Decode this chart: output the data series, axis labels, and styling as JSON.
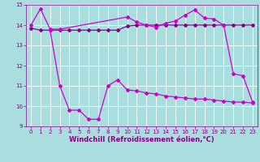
{
  "title": "",
  "xlabel": "Windchill (Refroidissement éolien,°C)",
  "ylabel": "",
  "bg_color": "#aadddd",
  "line_color1": "#cc00cc",
  "line_color2": "#880088",
  "xlim": [
    -0.5,
    23.5
  ],
  "ylim": [
    9,
    15
  ],
  "yticks": [
    9,
    10,
    11,
    12,
    13,
    14,
    15
  ],
  "xticks": [
    0,
    1,
    2,
    3,
    4,
    5,
    6,
    7,
    8,
    9,
    10,
    11,
    12,
    13,
    14,
    15,
    16,
    17,
    18,
    19,
    20,
    21,
    22,
    23
  ],
  "series1_x": [
    0,
    1,
    2,
    3,
    10,
    11,
    12,
    13,
    14,
    15,
    16,
    17,
    18,
    19,
    20,
    21,
    22,
    23
  ],
  "series1_y": [
    14.0,
    14.8,
    13.8,
    13.8,
    14.4,
    14.15,
    14.0,
    13.9,
    14.1,
    14.2,
    14.5,
    14.75,
    14.35,
    14.3,
    14.0,
    11.6,
    11.5,
    10.2
  ],
  "series2_x": [
    0,
    1,
    2,
    3,
    4,
    5,
    6,
    7,
    8,
    9,
    10,
    11,
    12,
    13,
    14,
    15,
    16,
    17,
    18,
    19,
    20,
    21,
    22,
    23
  ],
  "series2_y": [
    13.85,
    13.75,
    13.75,
    13.75,
    13.75,
    13.75,
    13.75,
    13.75,
    13.75,
    13.75,
    13.95,
    14.0,
    14.0,
    14.0,
    14.0,
    14.0,
    14.0,
    14.0,
    14.0,
    14.0,
    14.0,
    14.0,
    14.0,
    14.0
  ],
  "series3_x": [
    2,
    3,
    4,
    5,
    6,
    7,
    8,
    9,
    10,
    11,
    12,
    13,
    14,
    15,
    16,
    17,
    18,
    19,
    20,
    21,
    22,
    23
  ],
  "series3_y": [
    13.75,
    11.0,
    9.8,
    9.8,
    9.35,
    9.35,
    11.0,
    11.3,
    10.8,
    10.75,
    10.65,
    10.6,
    10.5,
    10.45,
    10.4,
    10.35,
    10.35,
    10.3,
    10.25,
    10.2,
    10.2,
    10.15
  ],
  "grid_color": "#ffffff",
  "tick_color": "#880088",
  "tick_fontsize": 5.0,
  "xlabel_fontsize": 6.0,
  "marker": "D",
  "marker_size": 2.0,
  "linewidth": 0.9
}
